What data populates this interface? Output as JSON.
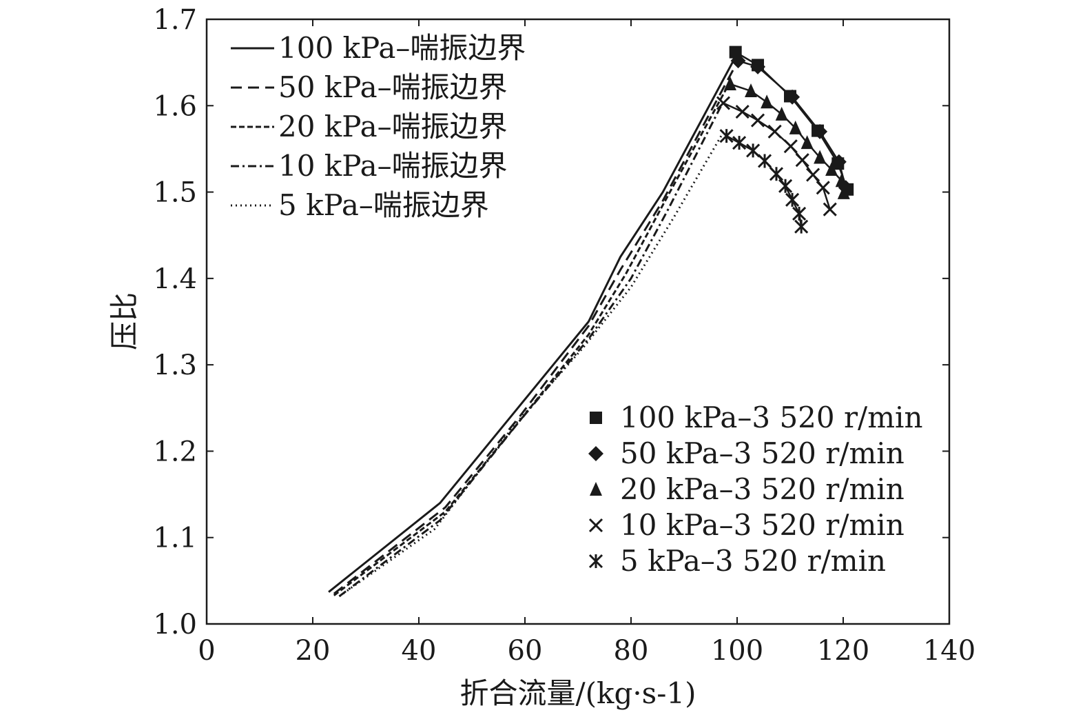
{
  "chart_data": {
    "type": "line",
    "title": "",
    "xlabel": "折合流量/(kg·s-1)",
    "ylabel": "压比",
    "xlim": [
      0,
      140
    ],
    "ylim": [
      1.0,
      1.7
    ],
    "xticks": [
      "0",
      "20",
      "40",
      "60",
      "80",
      "100",
      "120",
      "140"
    ],
    "yticks": [
      "1.0",
      "1.1",
      "1.2",
      "1.3",
      "1.4",
      "1.5",
      "1.6",
      "1.7"
    ],
    "grid": false,
    "legend_positions": [
      "top-left",
      "bottom-right"
    ],
    "surge_lines": [
      {
        "name": "100 kPa–喘振边界",
        "style": "solid",
        "x": [
          23,
          44,
          58,
          72,
          78,
          86,
          100
        ],
        "y": [
          1.037,
          1.14,
          1.245,
          1.35,
          1.425,
          1.5,
          1.66
        ]
      },
      {
        "name": "50 kPa–喘振边界",
        "style": "dashed",
        "x": [
          24,
          45,
          59,
          72,
          78,
          86,
          100
        ],
        "y": [
          1.035,
          1.135,
          1.24,
          1.345,
          1.41,
          1.49,
          1.65
        ]
      },
      {
        "name": "20 kPa–喘振边界",
        "style": "short-dashed",
        "x": [
          24,
          45,
          59,
          72,
          79,
          86,
          98
        ],
        "y": [
          1.033,
          1.13,
          1.235,
          1.335,
          1.405,
          1.485,
          1.62
        ]
      },
      {
        "name": "10 kPa–喘振边界",
        "style": "dash-dot",
        "x": [
          25,
          44,
          59,
          72,
          80,
          87,
          97
        ],
        "y": [
          1.032,
          1.12,
          1.235,
          1.33,
          1.4,
          1.48,
          1.6
        ]
      },
      {
        "name": "5 kPa–喘振边界",
        "style": "dotted",
        "x": [
          25,
          43,
          58,
          71,
          80,
          88,
          97
        ],
        "y": [
          1.032,
          1.11,
          1.23,
          1.32,
          1.39,
          1.47,
          1.565
        ]
      }
    ],
    "speed_lines": [
      {
        "name": "100 kPa–3 520 r/min",
        "marker": "square",
        "x": [
          99.7,
          103.9,
          110,
          115.2,
          119,
          120.8
        ],
        "y": [
          1.662,
          1.647,
          1.611,
          1.571,
          1.533,
          1.503
        ]
      },
      {
        "name": "50 kPa–3 520 r/min",
        "marker": "diamond",
        "x": [
          100.2,
          103.9,
          110.4,
          115.6,
          119.2,
          120.5
        ],
        "y": [
          1.652,
          1.645,
          1.61,
          1.57,
          1.535,
          1.505
        ]
      },
      {
        "name": "20 kPa–3 520 r/min",
        "marker": "triangle",
        "x": [
          98.7,
          102.6,
          105.6,
          108.4,
          111,
          113.2,
          115.6,
          117.8,
          119.7,
          120.1
        ],
        "y": [
          1.625,
          1.617,
          1.604,
          1.59,
          1.574,
          1.557,
          1.54,
          1.526,
          1.513,
          1.499
        ]
      },
      {
        "name": "10 kPa–3 520 r/min",
        "marker": "x",
        "x": [
          97.4,
          101,
          103.9,
          107.1,
          110.1,
          112.3,
          114.3,
          116.2,
          117.5
        ],
        "y": [
          1.603,
          1.593,
          1.583,
          1.57,
          1.553,
          1.537,
          1.52,
          1.505,
          1.48
        ]
      },
      {
        "name": "5 kPa–3 520 r/min",
        "marker": "asterisk",
        "x": [
          98,
          100.4,
          103,
          105.2,
          107.4,
          109.1,
          110.4,
          111.7,
          112.1
        ],
        "y": [
          1.565,
          1.557,
          1.548,
          1.536,
          1.521,
          1.507,
          1.491,
          1.475,
          1.46
        ]
      }
    ]
  }
}
